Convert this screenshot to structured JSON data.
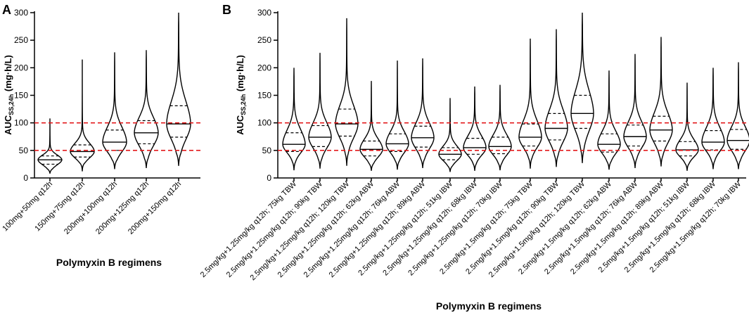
{
  "chart_data": [
    {
      "panel": "A",
      "type": "violin",
      "ylabel_main": "AUC",
      "ylabel_sub": "SS,24h",
      "ylabel_unit": " (mg·h/L)",
      "xlabel": "Polymyxin B regimens",
      "ylim": [
        0,
        300
      ],
      "yticks": [
        0,
        50,
        100,
        150,
        200,
        250,
        300
      ],
      "reference_lines": [
        50,
        100
      ],
      "reference_color": "#e31a1c",
      "categories": [
        "100mg+50mg q12h",
        "150mg+75mg q12h",
        "200mg+100mg q12h",
        "200mg+125mg q12h",
        "200mg+150mg q12h"
      ],
      "violins": [
        {
          "min": 8,
          "q1": 25,
          "median": 33,
          "q3": 40,
          "max": 108
        },
        {
          "min": 12,
          "q1": 38,
          "median": 48,
          "q3": 60,
          "max": 215
        },
        {
          "min": 16,
          "q1": 50,
          "median": 65,
          "q3": 87,
          "max": 228
        },
        {
          "min": 18,
          "q1": 62,
          "median": 82,
          "q3": 104,
          "max": 232
        },
        {
          "min": 22,
          "q1": 74,
          "median": 98,
          "q3": 131,
          "max": 300
        }
      ]
    },
    {
      "panel": "B",
      "type": "violin",
      "ylabel_main": "AUC",
      "ylabel_sub": "SS,24h",
      "ylabel_unit": " (mg·h/L)",
      "xlabel": "Polymyxin B regimens",
      "ylim": [
        0,
        300
      ],
      "yticks": [
        0,
        50,
        100,
        150,
        200,
        250,
        300
      ],
      "reference_lines": [
        50,
        100
      ],
      "reference_color": "#e31a1c",
      "groups": [
        {
          "categories": [
            "2.5mg/kg+1.25mg/kg q12h; 75kg TBW",
            "2.5mg/kg+1.25mg/kg q12h; 90kg TBW",
            "2.5mg/kg+1.25mg/kg q12h; 120kg TBW"
          ],
          "violins": [
            {
              "min": 14,
              "q1": 48,
              "median": 61,
              "q3": 82,
              "max": 200
            },
            {
              "min": 17,
              "q1": 57,
              "median": 74,
              "q3": 95,
              "max": 227
            },
            {
              "min": 22,
              "q1": 76,
              "median": 98,
              "q3": 125,
              "max": 290
            }
          ]
        },
        {
          "categories": [
            "2.5mg/kg+1.25mg/kg q12h; 62kg ABW",
            "2.5mg/kg+1.25mg/kg q12h; 76kg ABW",
            "2.5mg/kg+1.25mg/kg q12h; 89kg ABW"
          ],
          "violins": [
            {
              "min": 13,
              "q1": 40,
              "median": 52,
              "q3": 67,
              "max": 176
            },
            {
              "min": 15,
              "q1": 48,
              "median": 62,
              "q3": 80,
              "max": 213
            },
            {
              "min": 18,
              "q1": 56,
              "median": 73,
              "q3": 94,
              "max": 217
            }
          ]
        },
        {
          "categories": [
            "2.5mg/kg+1.25mg/kg q12h; 51kg IBW",
            "2.5mg/kg+1.25mg/kg q12h; 68kg IBW",
            "2.5mg/kg+1.25mg/kg q12h; 70kg IBW"
          ],
          "violins": [
            {
              "min": 11,
              "q1": 33,
              "median": 43,
              "q3": 55,
              "max": 145
            },
            {
              "min": 13,
              "q1": 43,
              "median": 55,
              "q3": 72,
              "max": 166
            },
            {
              "min": 14,
              "q1": 44,
              "median": 57,
              "q3": 74,
              "max": 169
            }
          ]
        },
        {
          "categories": [
            "2.5mg/kg+1.5mg/kg q12h; 75kg TBW",
            "2.5mg/kg+1.5mg/kg q12h; 90kg TBW",
            "2.5mg/kg+1.5mg/kg q12h; 120kg TBW"
          ],
          "violins": [
            {
              "min": 17,
              "q1": 58,
              "median": 74,
              "q3": 98,
              "max": 253
            },
            {
              "min": 20,
              "q1": 69,
              "median": 90,
              "q3": 117,
              "max": 270
            },
            {
              "min": 27,
              "q1": 90,
              "median": 117,
              "q3": 150,
              "max": 300
            }
          ]
        },
        {
          "categories": [
            "2.5mg/kg+1.5mg/kg q12h; 62kg ABW",
            "2.5mg/kg+1.5mg/kg q12h; 76kg ABW",
            "2.5mg/kg+1.5mg/kg q12h; 89kg ABW"
          ],
          "violins": [
            {
              "min": 15,
              "q1": 47,
              "median": 61,
              "q3": 80,
              "max": 195
            },
            {
              "min": 18,
              "q1": 58,
              "median": 75,
              "q3": 96,
              "max": 225
            },
            {
              "min": 21,
              "q1": 67,
              "median": 87,
              "q3": 112,
              "max": 256
            }
          ]
        },
        {
          "categories": [
            "2.5mg/kg+1.5mg/kg q12h; 51kg IBW",
            "2.5mg/kg+1.5mg/kg q12h; 68kg IBW",
            "2.5mg/kg+1.5mg/kg q12h; 70kg IBW"
          ],
          "violins": [
            {
              "min": 13,
              "q1": 40,
              "median": 51,
              "q3": 66,
              "max": 173
            },
            {
              "min": 16,
              "q1": 51,
              "median": 65,
              "q3": 86,
              "max": 200
            },
            {
              "min": 16,
              "q1": 52,
              "median": 68,
              "q3": 88,
              "max": 210
            }
          ]
        }
      ]
    }
  ]
}
